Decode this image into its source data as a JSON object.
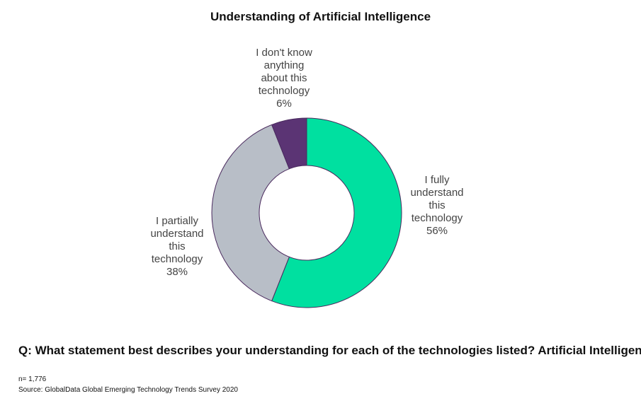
{
  "chart_data": {
    "type": "pie",
    "donut": true,
    "title": "Understanding of Artificial Intelligence",
    "slices": [
      {
        "label_lines": [
          "I fully",
          "understand",
          "this",
          "technology"
        ],
        "value": 56,
        "value_label": "56%",
        "color": "#00e0a0"
      },
      {
        "label_lines": [
          "I partially",
          "understand",
          "this",
          "technology"
        ],
        "value": 38,
        "value_label": "38%",
        "color": "#b8bec7"
      },
      {
        "label_lines": [
          "I don't know",
          "anything",
          "about this",
          "technology"
        ],
        "value": 6,
        "value_label": "6%",
        "color": "#5b3474"
      }
    ],
    "outline_color": "#4a2a5e"
  },
  "question": "Q:  What statement best describes your understanding for each of the technologies listed?  Artificial Intelligence",
  "footnote": {
    "n": "n= 1,776",
    "source": "Source:  GlobalData Global Emerging Technology Trends Survey 2020"
  }
}
